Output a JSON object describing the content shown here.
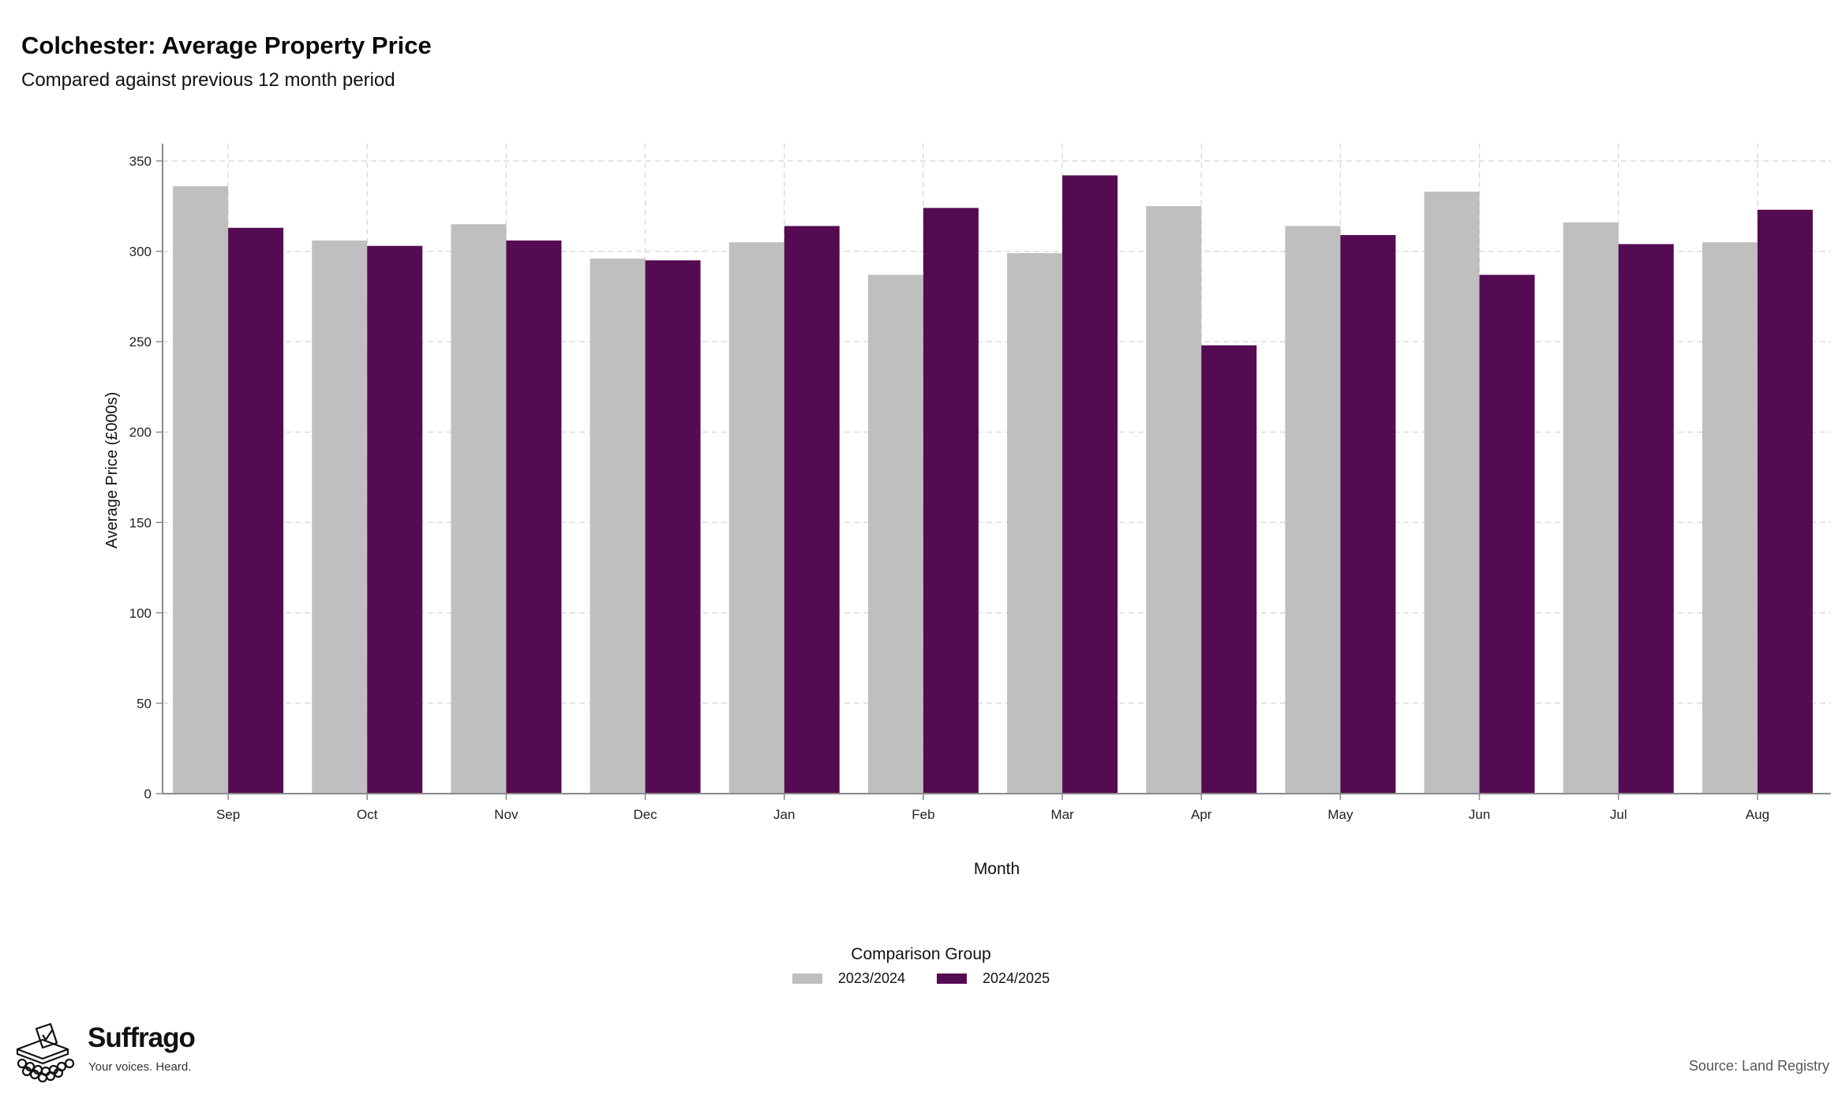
{
  "page": {
    "title": "Colchester: Average Property Price",
    "subtitle": "Compared against previous 12 month period",
    "source": "Source: Land Registry"
  },
  "logo": {
    "name": "Suffrago",
    "tagline": "Your voices. Heard.",
    "icon": "ballot-box-icon"
  },
  "legend": {
    "title": "Comparison Group",
    "position": "bottom-center"
  },
  "colors": {
    "series_2023_2024": "#bfbfbf",
    "series_2024_2025": "#540b51",
    "grid": "#dcdcdc",
    "axis": "#8a8a8a"
  },
  "chart_data": {
    "type": "bar",
    "title": "Colchester: Average Property Price",
    "subtitle": "Compared against previous 12 month period",
    "xlabel": "Month",
    "ylabel": "Average Price (£000s)",
    "categories": [
      "Sep",
      "Oct",
      "Nov",
      "Dec",
      "Jan",
      "Feb",
      "Mar",
      "Apr",
      "May",
      "Jun",
      "Jul",
      "Aug"
    ],
    "ylim": [
      0,
      350
    ],
    "yticks": [
      0,
      50,
      100,
      150,
      200,
      250,
      300,
      350
    ],
    "grid": true,
    "series": [
      {
        "name": "2023/2024",
        "color": "#bfbfbf",
        "values": [
          336,
          306,
          315,
          296,
          305,
          287,
          299,
          325,
          314,
          333,
          316,
          305
        ]
      },
      {
        "name": "2024/2025",
        "color": "#540b51",
        "values": [
          313,
          303,
          306,
          295,
          314,
          324,
          342,
          248,
          309,
          287,
          304,
          323
        ]
      }
    ]
  }
}
